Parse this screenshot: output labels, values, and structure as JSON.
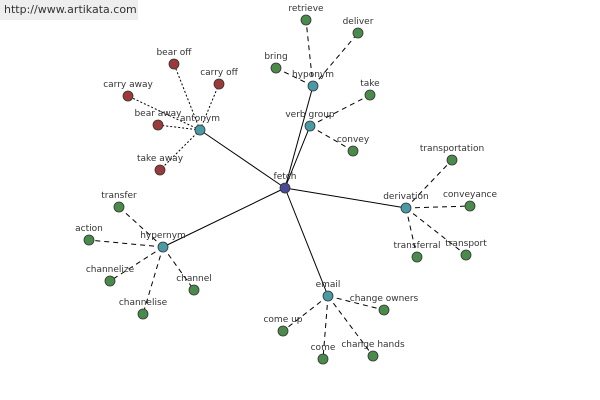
{
  "watermark": "http://www.artikata.com",
  "center": "fetch",
  "groups": [
    {
      "label": "antonym",
      "children": [
        "bear off",
        "carry off",
        "carry away",
        "bear away",
        "take away"
      ]
    },
    {
      "label": "hyponym",
      "children": [
        "retrieve",
        "deliver",
        "bring"
      ]
    },
    {
      "label": "verb group",
      "children": [
        "take",
        "convey"
      ]
    },
    {
      "label": "derivation",
      "children": [
        "transportation",
        "conveyance",
        "transferral",
        "transport"
      ]
    },
    {
      "label": "hypernym",
      "children": [
        "transfer",
        "action",
        "channelize",
        "channelise",
        "channel"
      ]
    },
    {
      "label": "email",
      "children": [
        "change owners",
        "come up",
        "come",
        "change hands"
      ]
    }
  ]
}
